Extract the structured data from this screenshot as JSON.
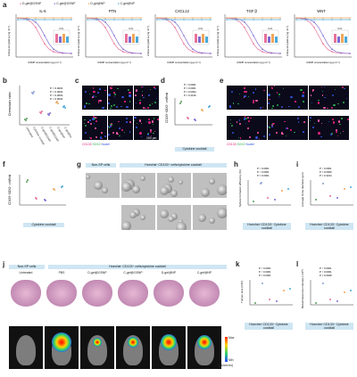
{
  "panel_a": {
    "letter": "a",
    "legend": [
      "D-gel@GSNP",
      "C-gel@GSNP",
      "CXCL12",
      "TGFβ",
      "WNT"
    ],
    "legend_labels": [
      "D-gel@GSNP",
      "C-gel@GSNP",
      "D-gel@NP",
      "C-gel@NP"
    ],
    "ylabel": "Unbound cytokine (ng ml⁻¹)",
    "xlabel": "GSNP concentration (μg ml⁻¹)",
    "ns": "N.S.",
    "charts": [
      {
        "title": "IL-6"
      },
      {
        "title": "PTN"
      },
      {
        "title": "CXCL12"
      },
      {
        "title": "TGF β"
      },
      {
        "title": "WNT"
      }
    ]
  },
  "panel_b": {
    "letter": "b",
    "ylabel": "Chemotaxis index",
    "pvals": [
      "P < 0.0001",
      "P < 0.0001",
      "P < 0.0001",
      "P < 0.0001"
    ],
    "categories": [
      "Untreated",
      "Cytokine cocktail",
      "D-gel@GSNP",
      "C-gel@GSNP",
      "D-gel@NP",
      "C-gel@NP"
    ]
  },
  "panel_c": {
    "letter": "c",
    "labels": [
      "PBS",
      "D-gel@GSNP",
      "C-gel@GSNP",
      "D-gel@GSNP",
      "C-gel@NP",
      "C-gel@NP"
    ],
    "stain": [
      "CD133",
      "SOX2",
      "Nuclei"
    ],
    "scale": "100 μm"
  },
  "panel_d": {
    "letter": "d",
    "ylabel": "CD133⁺SOX2⁺ cell/field",
    "pvals": [
      "P < 0.0001",
      "P = 0.0001",
      "P = 0.0094",
      "P = 0.3416"
    ],
    "box": "Cytokine cocktail"
  },
  "panel_e": {
    "letter": "e",
    "labels": [
      "PBS",
      "D-gel@GSNP",
      "C-gel@GSNP",
      "D-gel@NP",
      "C-gel@NP",
      "C-gel@NP"
    ],
    "stain": [
      "CD133",
      "SOX2",
      "Nuclei"
    ]
  },
  "panel_f": {
    "letter": "f",
    "ylabel": "CD133⁺SOX2⁺ cell/field",
    "box": "Cytokine cocktail"
  },
  "panel_g": {
    "letter": "g",
    "hdr_left": "Non-SP cells",
    "hdr_right": "Hoechst⁻CD133⁺ cells/cytokine cocktail",
    "labels_top": [
      "Untreated",
      "PBS",
      "D-gel@GSNP",
      "C-gel@GSNP"
    ],
    "labels_bottom": [
      "D-gel@GSNP",
      "C-gel@NP",
      "C-gel@NP"
    ]
  },
  "panel_h": {
    "letter": "h",
    "ylabel": "Sphere formation efficiency (%)",
    "box": "Hoechst⁻CD133⁺ Cytokine cocktail",
    "pvals": [
      "P < 0.0001",
      "P < 0.0001",
      "P = 0.0001"
    ]
  },
  "panel_i": {
    "letter": "i",
    "ylabel": "Average clone diameter (μm)",
    "box": "Hoechst⁻CD133⁺ Cytokine cocktail",
    "pvals": [
      "P < 0.0001",
      "P = 0.0009",
      "P = 0.3224"
    ]
  },
  "panel_j": {
    "letter": "j",
    "hdr_left": "Non-SP cells",
    "hdr_right": "Hoechst⁻CD133⁺ cells/cytokine cocktail",
    "labels": [
      "Untreated",
      "PBS",
      "D-gel@GSNP",
      "C-gel@GSNP",
      "D-gel@NP",
      "C-gel@NP"
    ],
    "scale": [
      "Max",
      "Min"
    ],
    "units": "(p/s/cm²/sr)"
  },
  "panel_k": {
    "letter": "k",
    "ylabel": "Tumour size (mm³)",
    "box": "Hoechst⁻CD133⁺ Cytokine cocktail",
    "pvals": [
      "P < 0.0001",
      "P < 0.0001",
      "P = 0.0001"
    ]
  },
  "panel_l": {
    "letter": "l",
    "ylabel": "Bioluminescence intensity (×10⁸)",
    "box": "Hoechst⁻CD133⁺ Cytokine cocktail",
    "pvals": [
      "P < 0.0001",
      "P < 0.0001",
      "P = 0.0028"
    ]
  },
  "colors": {
    "dgel_gsnp": "#e8719a",
    "cgel_gsnp": "#7d6bd1",
    "dgel_np": "#f2a65a",
    "cgel_np": "#4aa8d8",
    "untreated": "#5c9e5c",
    "box_bg": "#cfe6f3"
  }
}
